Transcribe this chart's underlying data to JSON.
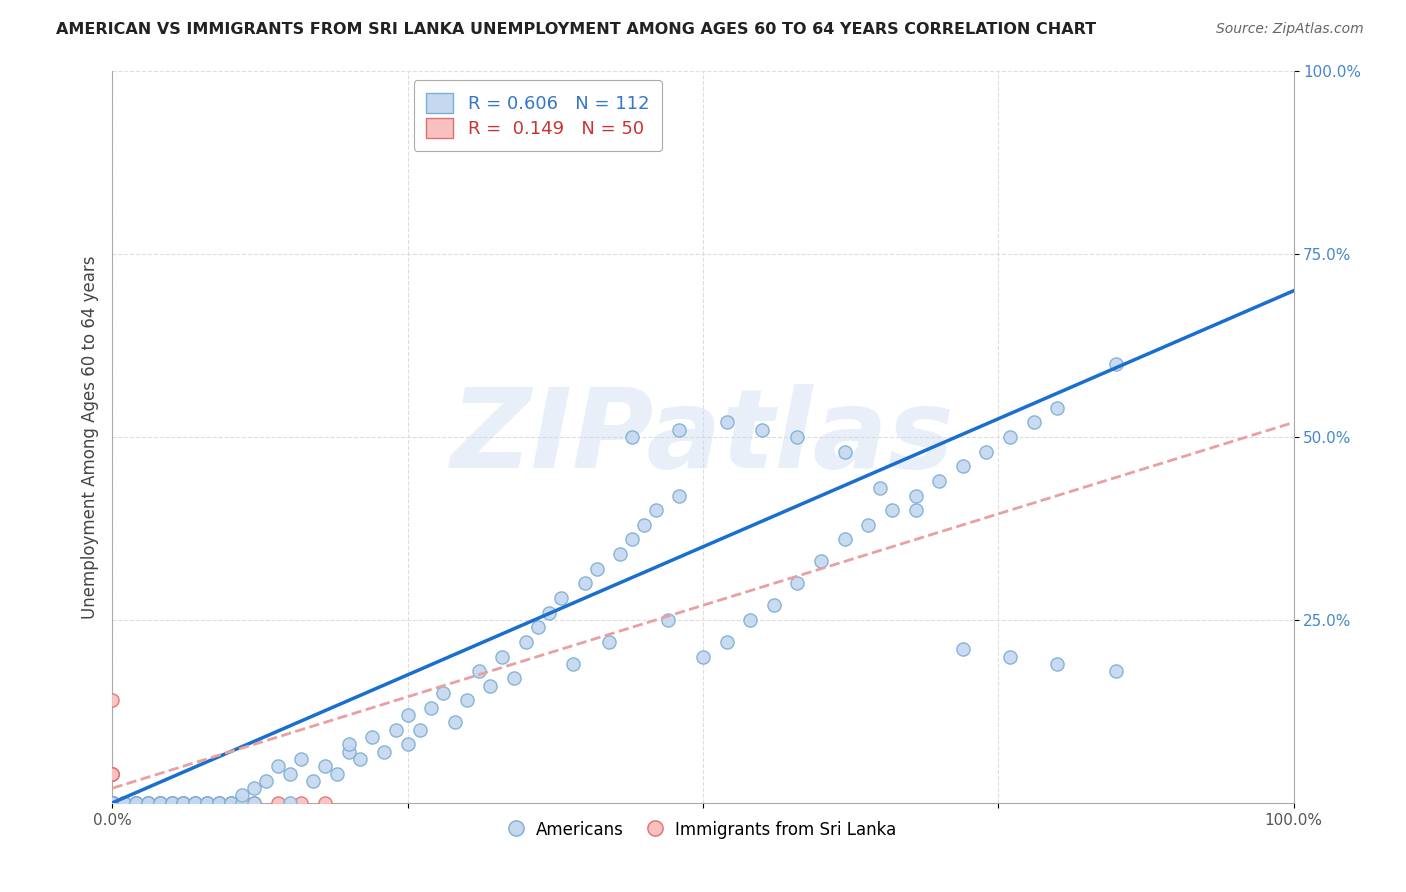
{
  "title": "AMERICAN VS IMMIGRANTS FROM SRI LANKA UNEMPLOYMENT AMONG AGES 60 TO 64 YEARS CORRELATION CHART",
  "source": "Source: ZipAtlas.com",
  "ylabel": "Unemployment Among Ages 60 to 64 years",
  "watermark": "ZIPatlas",
  "legend_blue_r": "0.606",
  "legend_blue_n": "112",
  "legend_pink_r": "0.149",
  "legend_pink_n": "50",
  "blue_scatter_color": "#c5d8f0",
  "blue_scatter_edge": "#7aafd4",
  "pink_scatter_color": "#f9c0c0",
  "pink_scatter_edge": "#e07070",
  "trend_blue": "#1a6fce",
  "trend_pink": "#e8a0a0",
  "trend_blue_solid": true,
  "xlim": [
    0.0,
    1.0
  ],
  "ylim": [
    0.0,
    1.0
  ],
  "xticks": [
    0.0,
    0.25,
    0.5,
    0.75,
    1.0
  ],
  "yticks": [
    0.25,
    0.5,
    0.75,
    1.0
  ],
  "xticklabels": [
    "0.0%",
    "",
    "",
    "",
    "100.0%"
  ],
  "yticklabels": [
    "25.0%",
    "50.0%",
    "75.0%",
    "100.0%"
  ],
  "background_color": "#ffffff",
  "grid_color": "#dddddd",
  "legend_blue_text_color": "#3377cc",
  "legend_pink_text_color": "#cc3333",
  "americans_x": [
    0.0,
    0.0,
    0.0,
    0.0,
    0.0,
    0.0,
    0.0,
    0.0,
    0.0,
    0.0,
    0.0,
    0.0,
    0.0,
    0.0,
    0.0,
    0.0,
    0.0,
    0.0,
    0.0,
    0.0,
    0.01,
    0.01,
    0.02,
    0.02,
    0.03,
    0.03,
    0.04,
    0.04,
    0.05,
    0.05,
    0.06,
    0.06,
    0.07,
    0.07,
    0.08,
    0.08,
    0.09,
    0.09,
    0.1,
    0.1,
    0.11,
    0.11,
    0.12,
    0.12,
    0.13,
    0.14,
    0.15,
    0.15,
    0.16,
    0.17,
    0.18,
    0.19,
    0.2,
    0.2,
    0.21,
    0.22,
    0.23,
    0.24,
    0.25,
    0.25,
    0.26,
    0.27,
    0.28,
    0.29,
    0.3,
    0.31,
    0.32,
    0.33,
    0.34,
    0.35,
    0.36,
    0.37,
    0.38,
    0.39,
    0.4,
    0.41,
    0.42,
    0.43,
    0.44,
    0.45,
    0.46,
    0.47,
    0.48,
    0.5,
    0.52,
    0.54,
    0.56,
    0.58,
    0.6,
    0.62,
    0.64,
    0.66,
    0.68,
    0.7,
    0.72,
    0.74,
    0.76,
    0.78,
    0.8,
    0.85,
    0.44,
    0.48,
    0.52,
    0.55,
    0.58,
    0.62,
    0.65,
    0.68,
    0.72,
    0.76,
    0.8,
    0.85
  ],
  "americans_y": [
    0.0,
    0.0,
    0.0,
    0.0,
    0.0,
    0.0,
    0.0,
    0.0,
    0.0,
    0.0,
    0.0,
    0.0,
    0.0,
    0.0,
    0.0,
    0.0,
    0.0,
    0.0,
    0.0,
    0.0,
    0.0,
    0.0,
    0.0,
    0.0,
    0.0,
    0.0,
    0.0,
    0.0,
    0.0,
    0.0,
    0.0,
    0.0,
    0.0,
    0.0,
    0.0,
    0.0,
    0.0,
    0.0,
    0.0,
    0.0,
    0.0,
    0.01,
    0.0,
    0.02,
    0.03,
    0.05,
    0.0,
    0.04,
    0.06,
    0.03,
    0.05,
    0.04,
    0.07,
    0.08,
    0.06,
    0.09,
    0.07,
    0.1,
    0.08,
    0.12,
    0.1,
    0.13,
    0.15,
    0.11,
    0.14,
    0.18,
    0.16,
    0.2,
    0.17,
    0.22,
    0.24,
    0.26,
    0.28,
    0.19,
    0.3,
    0.32,
    0.22,
    0.34,
    0.36,
    0.38,
    0.4,
    0.25,
    0.42,
    0.2,
    0.22,
    0.25,
    0.27,
    0.3,
    0.33,
    0.36,
    0.38,
    0.4,
    0.42,
    0.44,
    0.46,
    0.48,
    0.5,
    0.52,
    0.54,
    0.6,
    0.5,
    0.51,
    0.52,
    0.51,
    0.5,
    0.48,
    0.43,
    0.4,
    0.21,
    0.2,
    0.19,
    0.18
  ],
  "srilanka_x": [
    0.0,
    0.0,
    0.0,
    0.0,
    0.0,
    0.0,
    0.0,
    0.0,
    0.0,
    0.0,
    0.0,
    0.0,
    0.0,
    0.0,
    0.0,
    0.0,
    0.0,
    0.0,
    0.0,
    0.0,
    0.0,
    0.0,
    0.0,
    0.0,
    0.0,
    0.0,
    0.0,
    0.0,
    0.0,
    0.0,
    0.01,
    0.01,
    0.02,
    0.02,
    0.03,
    0.03,
    0.04,
    0.04,
    0.05,
    0.05,
    0.06,
    0.06,
    0.07,
    0.08,
    0.09,
    0.1,
    0.12,
    0.14,
    0.16,
    0.18
  ],
  "srilanka_y": [
    0.0,
    0.0,
    0.0,
    0.0,
    0.0,
    0.0,
    0.0,
    0.0,
    0.0,
    0.0,
    0.0,
    0.0,
    0.0,
    0.0,
    0.0,
    0.0,
    0.0,
    0.0,
    0.0,
    0.0,
    0.0,
    0.0,
    0.0,
    0.0,
    0.0,
    0.14,
    0.04,
    0.04,
    0.04,
    0.04,
    0.0,
    0.0,
    0.0,
    0.0,
    0.0,
    0.0,
    0.0,
    0.0,
    0.0,
    0.0,
    0.0,
    0.0,
    0.0,
    0.0,
    0.0,
    0.0,
    0.0,
    0.0,
    0.0,
    0.0
  ],
  "blue_trend_start_x": 0.0,
  "blue_trend_start_y": 0.0,
  "blue_trend_end_x": 1.0,
  "blue_trend_end_y": 0.7,
  "pink_trend_start_x": 0.0,
  "pink_trend_start_y": 0.02,
  "pink_trend_end_x": 1.0,
  "pink_trend_end_y": 0.52
}
